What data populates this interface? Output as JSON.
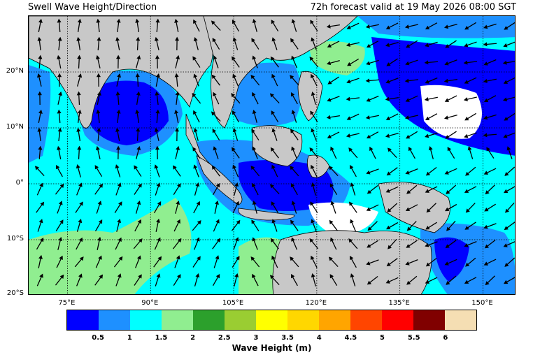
{
  "title": "Swell Wave Height/Direction",
  "valid_time": "72h forecast valid at 19 May 2026 08:00 SGT",
  "lat_labels": [
    "20°N",
    "10°N",
    "0°",
    "10°S",
    "20°S"
  ],
  "lon_labels": [
    "75°E",
    "90°E",
    "105°E",
    "120°E",
    "135°E",
    "150°E"
  ],
  "map_extent": {
    "lon": [
      68,
      156
    ],
    "lat": [
      -20,
      30
    ]
  },
  "colors": {
    "land": "#c8c8c8",
    "bins": [
      "#0000ff",
      "#1e90ff",
      "#00ffff",
      "#90ee90",
      "#2ca02c",
      "#9acd32",
      "#ffff00",
      "#ffd700",
      "#ffa500",
      "#ff4500",
      "#ff0000",
      "#800000",
      "#f5deb3"
    ]
  },
  "colorbar": {
    "ticks": [
      "0.5",
      "1",
      "1.5",
      "2",
      "2.5",
      "3",
      "3.5",
      "4",
      "4.5",
      "5",
      "5.5",
      "6"
    ],
    "label": "Wave Height (m)"
  }
}
